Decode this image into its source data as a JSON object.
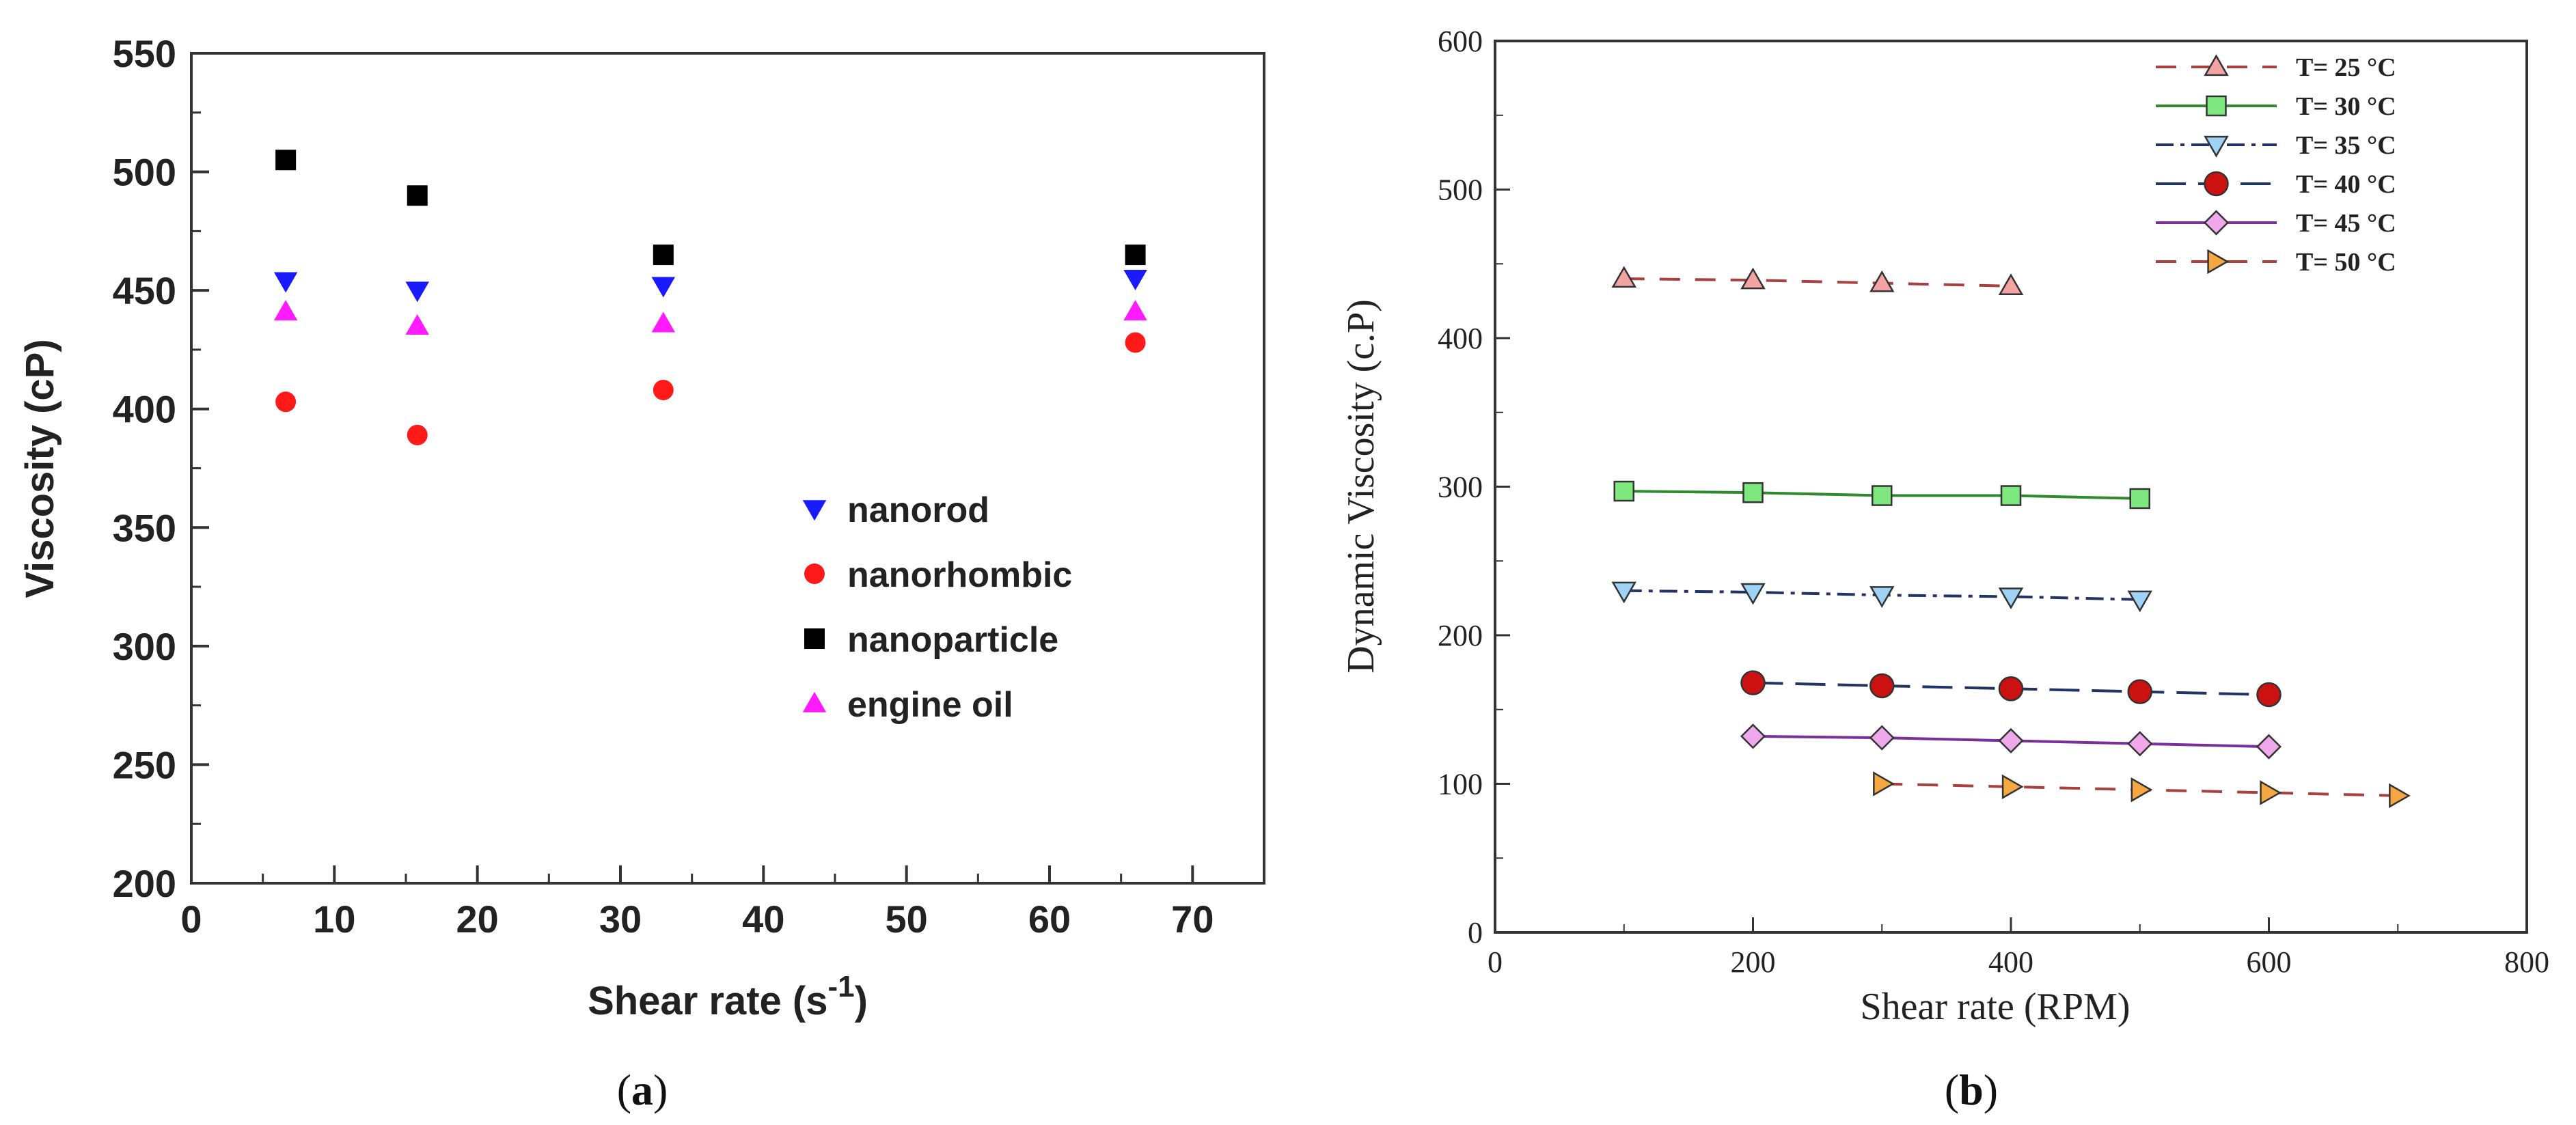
{
  "chart_data": [
    {
      "type": "scatter",
      "panel": "(a)",
      "caption_letter": "a",
      "xlabel": "Shear rate (s",
      "xlabel_sup": "-1",
      "xlabel_close": ")",
      "ylabel": "Viscosity (cP)",
      "xlim": [
        0,
        75
      ],
      "ylim": [
        200,
        550
      ],
      "xticks": [
        "0",
        "10",
        "20",
        "30",
        "40",
        "50",
        "60",
        "70"
      ],
      "yticks": [
        "200",
        "250",
        "300",
        "350",
        "400",
        "450",
        "500",
        "550"
      ],
      "legend_position": "center-right",
      "series": [
        {
          "name": "nanorod",
          "marker": "triangle-down",
          "color": "#1a1aff",
          "x": [
            6.6,
            15.8,
            33,
            66
          ],
          "y": [
            454,
            450,
            452,
            455
          ]
        },
        {
          "name": "nanorhombic",
          "marker": "circle",
          "color": "#ff1a1a",
          "x": [
            6.6,
            15.8,
            33,
            66
          ],
          "y": [
            403,
            389,
            408,
            428
          ]
        },
        {
          "name": "nanoparticle",
          "marker": "square",
          "color": "#000000",
          "x": [
            6.6,
            15.8,
            33,
            66
          ],
          "y": [
            505,
            490,
            465,
            465
          ]
        },
        {
          "name": "engine oil",
          "marker": "triangle-up",
          "color": "#ff1aff",
          "x": [
            6.6,
            15.8,
            33,
            66
          ],
          "y": [
            441,
            435,
            436,
            441
          ]
        }
      ]
    },
    {
      "type": "line",
      "panel": "(b)",
      "caption_letter": "b",
      "xlabel": "Shear rate (RPM)",
      "ylabel": "Dynamic Viscosity (c.P)",
      "xlim": [
        0,
        800
      ],
      "ylim": [
        0,
        600
      ],
      "xticks": [
        "0",
        "200",
        "400",
        "600",
        "800"
      ],
      "yticks": [
        "0",
        "100",
        "200",
        "300",
        "400",
        "500",
        "600"
      ],
      "legend_position": "top-right",
      "series": [
        {
          "name": "T= 25 °C",
          "marker": "triangle-up",
          "fill": "#f4a3a3",
          "line": "#a84040",
          "dash": "30,22",
          "x": [
            100,
            200,
            300,
            400
          ],
          "y": [
            440,
            439,
            437,
            435
          ]
        },
        {
          "name": "T= 30 °C",
          "marker": "square",
          "fill": "#7ee87e",
          "line": "#2f8a2f",
          "dash": "",
          "x": [
            100,
            200,
            300,
            400,
            500
          ],
          "y": [
            297,
            296,
            294,
            294,
            292
          ]
        },
        {
          "name": "T= 35 °C",
          "marker": "triangle-down",
          "fill": "#9fd3f5",
          "line": "#223366",
          "dash": "26,10,6,10",
          "x": [
            100,
            200,
            300,
            400,
            500
          ],
          "y": [
            230,
            229,
            227,
            226,
            224
          ]
        },
        {
          "name": "T= 40 °C",
          "marker": "circle",
          "fill": "#cc1111",
          "line": "#223366",
          "dash": "44,18",
          "x": [
            200,
            300,
            400,
            500,
            600
          ],
          "y": [
            168,
            166,
            164,
            162,
            160
          ]
        },
        {
          "name": "T= 45 °C",
          "marker": "diamond",
          "fill": "#f0a8ec",
          "line": "#7a2f9a",
          "dash": "",
          "x": [
            200,
            300,
            400,
            500,
            600
          ],
          "y": [
            132,
            131,
            129,
            127,
            125
          ]
        },
        {
          "name": "T= 50 °C",
          "marker": "triangle-right",
          "fill": "#f5a742",
          "line": "#a84040",
          "dash": "30,22",
          "x": [
            300,
            400,
            500,
            600,
            700
          ],
          "y": [
            100,
            98,
            96,
            94,
            92
          ]
        }
      ]
    }
  ]
}
